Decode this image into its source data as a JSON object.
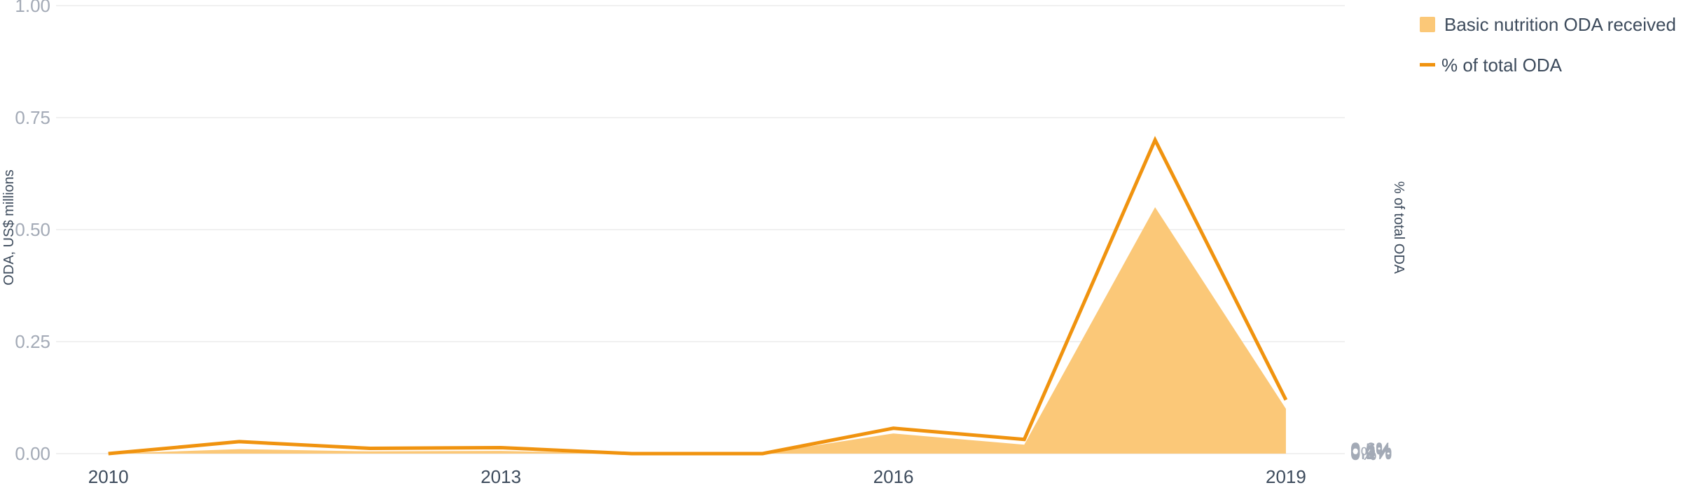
{
  "chart_data": {
    "type": "area",
    "x": [
      2010,
      2011,
      2012,
      2013,
      2014,
      2015,
      2016,
      2017,
      2018,
      2019
    ],
    "series": [
      {
        "name": "Basic nutrition ODA received",
        "kind": "area",
        "axis": "left",
        "values": [
          0.0,
          0.01,
          0.005,
          0.006,
          0.0,
          0.0,
          0.045,
          0.02,
          0.55,
          0.1
        ]
      },
      {
        "name": "% of total ODA",
        "kind": "line",
        "axis": "right",
        "values": [
          0.0,
          0.016,
          0.007,
          0.008,
          0.0,
          0.0,
          0.034,
          0.019,
          0.42,
          0.072
        ]
      }
    ],
    "xlabel": "",
    "ylabel": "ODA, US$ millions",
    "y2label": "% of total ODA",
    "ylim": [
      0,
      1.0
    ],
    "y2lim": [
      0,
      0.6
    ],
    "xlim": [
      2009.6,
      2019.45
    ],
    "yticks": [
      "0.00",
      "0.25",
      "0.50",
      "0.75",
      "1.00"
    ],
    "y2ticks": [
      "0%",
      "0.1%",
      "0.2%",
      "0.3%",
      "0.4%",
      "0.5%",
      "0.6%"
    ],
    "xticks": [
      "2010",
      "2013",
      "2016",
      "2019"
    ],
    "grid": true,
    "legend_position": "top-right",
    "colors": {
      "area": "#fbc878",
      "line": "#f0930f"
    }
  }
}
